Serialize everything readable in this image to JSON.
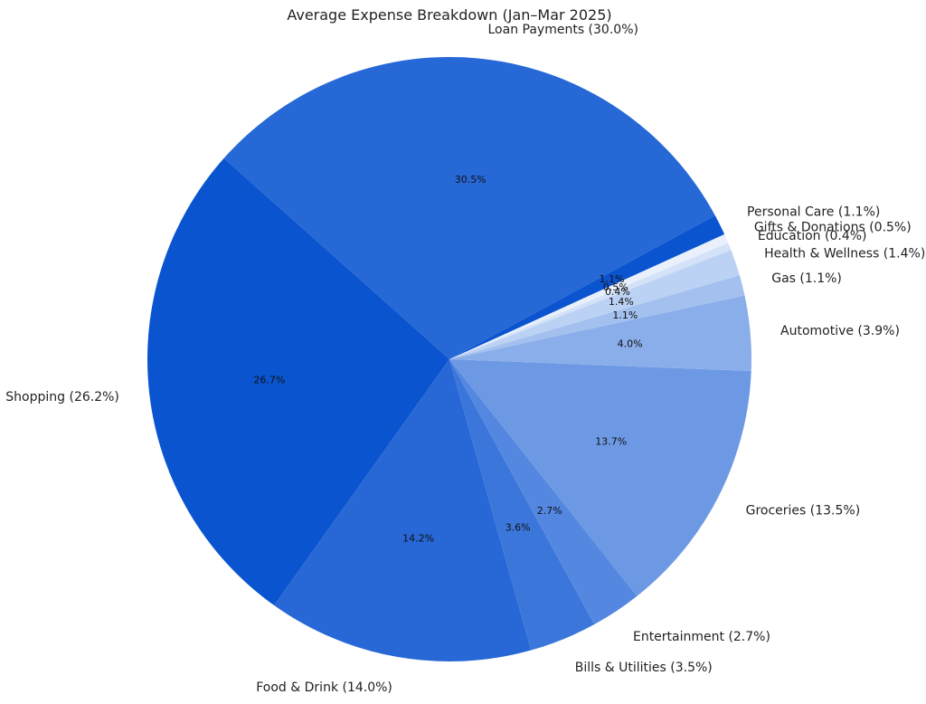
{
  "chart_data": {
    "type": "pie",
    "title": "Average Expense Breakdown (Jan–Mar 2025)",
    "start_angle_deg": 28.4,
    "direction": "counterclockwise",
    "slices": [
      {
        "label": "Loan Payments (30.0%)",
        "pct_label": "30.5%",
        "value": 30.5,
        "color": "#2668d6"
      },
      {
        "label": "Shopping (26.2%)",
        "pct_label": "26.7%",
        "value": 26.7,
        "color": "#0b54cf"
      },
      {
        "label": "Food & Drink (14.0%)",
        "pct_label": "14.2%",
        "value": 14.2,
        "color": "#2768d6"
      },
      {
        "label": "Bills & Utilities (3.5%)",
        "pct_label": "3.6%",
        "value": 3.6,
        "color": "#3b76db"
      },
      {
        "label": "Entertainment (2.7%)",
        "pct_label": "2.7%",
        "value": 2.7,
        "color": "#5487e0"
      },
      {
        "label": "Groceries (13.5%)",
        "pct_label": "13.7%",
        "value": 13.7,
        "color": "#6d99e4"
      },
      {
        "label": "Automotive (3.9%)",
        "pct_label": "4.0%",
        "value": 4.0,
        "color": "#8aaeea"
      },
      {
        "label": "Gas (1.1%)",
        "pct_label": "1.1%",
        "value": 1.1,
        "color": "#a3c0ef"
      },
      {
        "label": "Health & Wellness (1.4%)",
        "pct_label": "1.4%",
        "value": 1.4,
        "color": "#bcd2f4"
      },
      {
        "label": "Education (0.4%)",
        "pct_label": "0.4%",
        "value": 0.4,
        "color": "#d4e2f8"
      },
      {
        "label": "Gifts & Donations (0.5%)",
        "pct_label": "0.5%",
        "value": 0.5,
        "color": "#e9f0fc"
      },
      {
        "label": "Personal Care (1.1%)",
        "pct_label": "1.1%",
        "value": 1.1,
        "color": "#0b54cf"
      }
    ]
  }
}
